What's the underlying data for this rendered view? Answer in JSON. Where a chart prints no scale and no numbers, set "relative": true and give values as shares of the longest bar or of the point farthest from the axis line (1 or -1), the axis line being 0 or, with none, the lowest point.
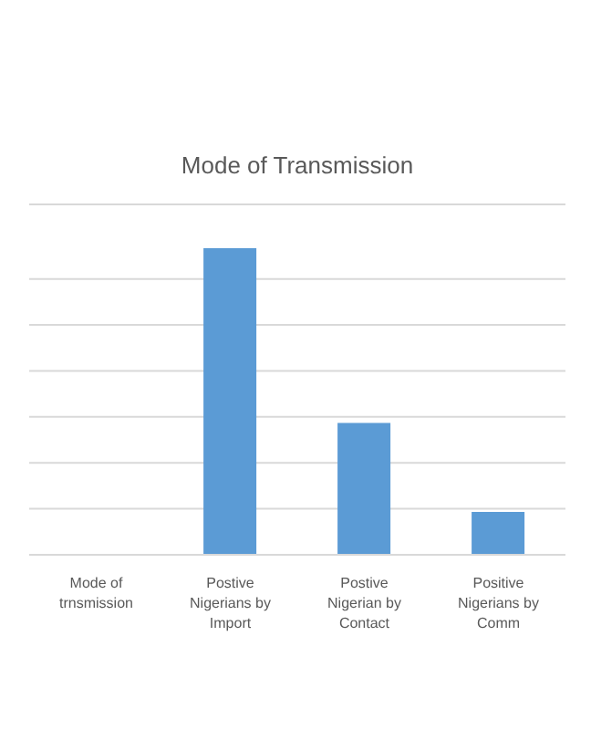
{
  "chart_data": {
    "type": "bar",
    "title": "Mode of Transmission",
    "categories": [
      "Mode of trnsmission",
      "Postive Nigerians by Import",
      "Postive Nigerian by Contact",
      "Positive Nigerians by Comm"
    ],
    "values": [
      0,
      1,
      0.43,
      0.14
    ],
    "color": "#5b9bd5",
    "relative": true,
    "grid": "y"
  }
}
